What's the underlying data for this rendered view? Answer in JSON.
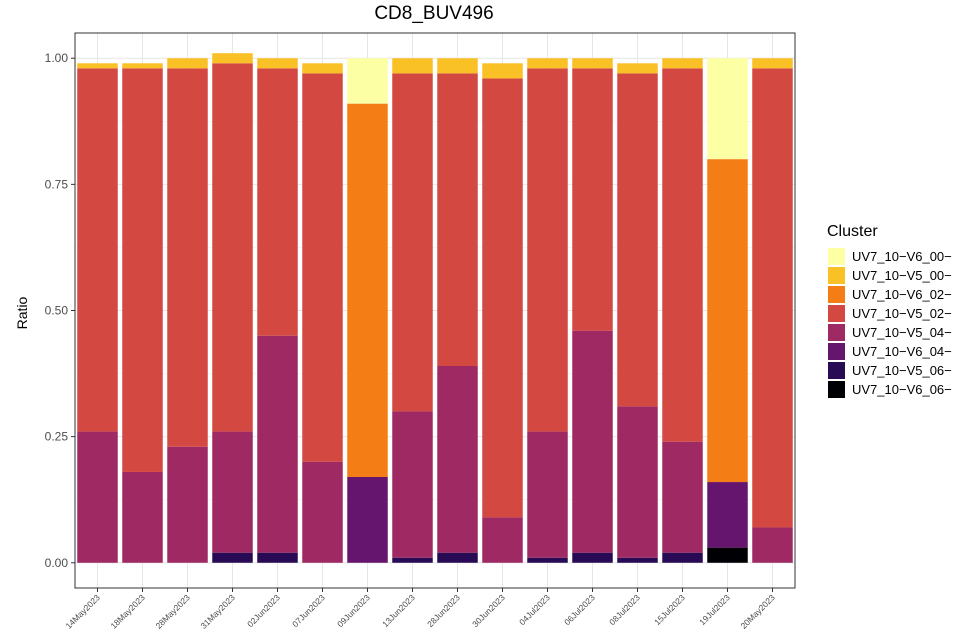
{
  "chart_data": {
    "type": "bar",
    "stacked": true,
    "title": "CD8_BUV496",
    "xlabel": "",
    "ylabel": "Ratio",
    "ylim": [
      -0.05,
      1.05
    ],
    "yticks": [
      0.0,
      0.25,
      0.5,
      0.75,
      1.0
    ],
    "ytick_labels": [
      "0.00",
      "0.25",
      "0.50",
      "0.75",
      "1.00"
    ],
    "grid": true,
    "legend_position": "right",
    "legend_title": "Cluster",
    "categories": [
      "14May2023",
      "18May2023",
      "28May2023",
      "31May2023",
      "02Jun2023",
      "07Jun2023",
      "09Jun2023",
      "13Jun2023",
      "28Jun2023",
      "30Jun2023",
      "04Jul2023",
      "06Jul2023",
      "08Jul2023",
      "15Jul2023",
      "19Jul2023",
      "20May2023"
    ],
    "series": [
      {
        "name": "UV7_10−V6_06−",
        "color": "#000004",
        "values": [
          0,
          0,
          0,
          0,
          0,
          0,
          0,
          0,
          0,
          0,
          0,
          0,
          0,
          0,
          0.03,
          0
        ]
      },
      {
        "name": "UV7_10−V5_06−",
        "color": "#280B54",
        "values": [
          0,
          0,
          0,
          0.02,
          0.02,
          0,
          0,
          0.01,
          0.02,
          0,
          0.01,
          0.02,
          0.01,
          0.02,
          0,
          0
        ]
      },
      {
        "name": "UV7_10−V6_04−",
        "color": "#65156E",
        "values": [
          0,
          0,
          0,
          0,
          0,
          0,
          0.17,
          0,
          0,
          0,
          0,
          0,
          0,
          0,
          0.13,
          0
        ]
      },
      {
        "name": "UV7_10−V5_04−",
        "color": "#9F2A63",
        "values": [
          0.26,
          0.18,
          0.23,
          0.24,
          0.43,
          0.2,
          0,
          0.29,
          0.37,
          0.09,
          0.25,
          0.44,
          0.3,
          0.22,
          0,
          0.07
        ]
      },
      {
        "name": "UV7_10−V5_02−",
        "color": "#D44842",
        "values": [
          0.72,
          0.8,
          0.75,
          0.73,
          0.53,
          0.77,
          0,
          0.67,
          0.58,
          0.87,
          0.72,
          0.52,
          0.66,
          0.74,
          0,
          0.91
        ]
      },
      {
        "name": "UV7_10−V6_02−",
        "color": "#F57D15",
        "values": [
          0,
          0,
          0,
          0,
          0,
          0,
          0.74,
          0,
          0,
          0,
          0,
          0,
          0,
          0,
          0.64,
          0
        ]
      },
      {
        "name": "UV7_10−V5_00−",
        "color": "#FAC127",
        "values": [
          0.01,
          0.01,
          0.02,
          0.02,
          0.02,
          0.02,
          0,
          0.03,
          0.03,
          0.03,
          0.02,
          0.02,
          0.02,
          0.02,
          0,
          0.02
        ]
      },
      {
        "name": "UV7_10−V6_00−",
        "color": "#FCFFA4",
        "values": [
          0,
          0,
          0,
          0,
          0,
          0,
          0.09,
          0,
          0,
          0,
          0,
          0,
          0,
          0,
          0.2,
          0
        ]
      }
    ]
  }
}
